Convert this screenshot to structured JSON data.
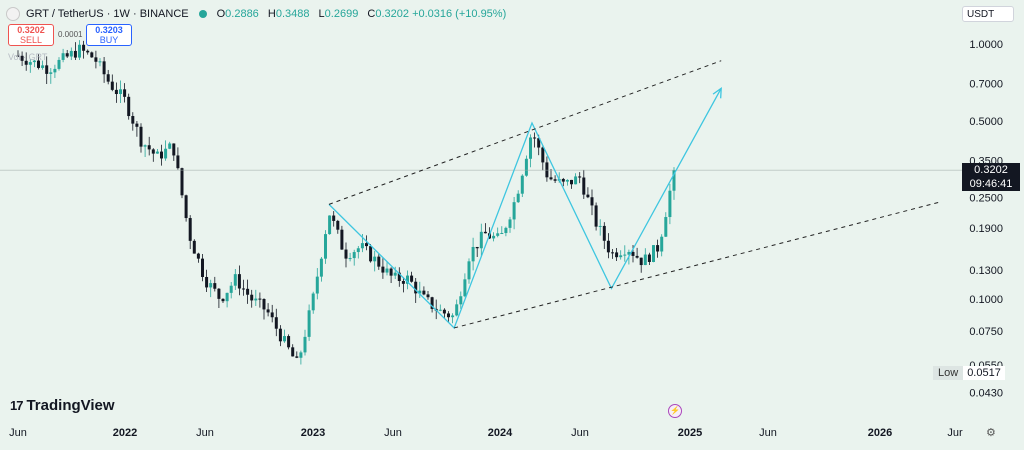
{
  "header": {
    "symbol": "GRT / TetherUS · 1W · BINANCE",
    "open_label": "O",
    "open": "0.2886",
    "high_label": "H",
    "high": "0.3488",
    "low_label": "L",
    "low": "0.2699",
    "close_label": "C",
    "close": "0.3202",
    "change": "+0.0316 (+10.95%)"
  },
  "trade": {
    "sell_price": "0.3202",
    "sell_label": "SELL",
    "buy_price": "0.3203",
    "buy_label": "BUY",
    "spread": "0.0001"
  },
  "volume_legend": "Vol · GRT",
  "currency_selector": "USDT",
  "low_marker": {
    "label": "Low",
    "value": "0.0517"
  },
  "last_price": {
    "price": "0.3202",
    "countdown": "09:46:41"
  },
  "brand": {
    "name": "TradingView",
    "mark": "17"
  },
  "colors": {
    "up": "#26a69a",
    "down": "#131722",
    "pattern": "#3ec6e0",
    "channel": "#222222",
    "background": "#eaf3ee"
  },
  "icons": {
    "event": "lightning-icon",
    "settings": "gear-icon"
  },
  "chart_data": {
    "type": "candlestick",
    "scale": "log",
    "y_ticks": [
      1.0,
      0.7,
      0.5,
      0.35,
      0.25,
      0.19,
      0.13,
      0.1,
      0.075,
      0.055,
      0.043
    ],
    "y_tick_labels": [
      "1.0000",
      "0.7000",
      "0.5000",
      "0.3500",
      "0.2500",
      "0.1900",
      "0.1300",
      "0.1000",
      "0.0750",
      "0.0550",
      "0.0430"
    ],
    "x_ticks": [
      {
        "label": "Jun",
        "date": "2021-06"
      },
      {
        "label": "2022",
        "date": "2022-01"
      },
      {
        "label": "Jun",
        "date": "2022-06"
      },
      {
        "label": "2023",
        "date": "2023-01"
      },
      {
        "label": "Jun",
        "date": "2023-06"
      },
      {
        "label": "2024",
        "date": "2024-01"
      },
      {
        "label": "Jun",
        "date": "2024-06"
      },
      {
        "label": "2025",
        "date": "2025-01"
      },
      {
        "label": "Jun",
        "date": "2025-06"
      },
      {
        "label": "2026",
        "date": "2026-01"
      },
      {
        "label": "Jur",
        "date": "2026-06"
      }
    ],
    "price_path": [
      [
        "2021-06",
        0.9
      ],
      [
        "2021-08",
        0.8
      ],
      [
        "2021-10",
        0.95
      ],
      [
        "2021-11",
        0.88
      ],
      [
        "2021-12",
        0.7
      ],
      [
        "2022-01",
        0.6
      ],
      [
        "2022-02",
        0.42
      ],
      [
        "2022-03",
        0.36
      ],
      [
        "2022-04",
        0.4
      ],
      [
        "2022-05",
        0.18
      ],
      [
        "2022-06",
        0.12
      ],
      [
        "2022-07",
        0.1
      ],
      [
        "2022-08",
        0.12
      ],
      [
        "2022-09",
        0.1
      ],
      [
        "2022-10",
        0.09
      ],
      [
        "2022-11",
        0.07
      ],
      [
        "2022-12",
        0.055
      ],
      [
        "2023-01",
        0.1
      ],
      [
        "2023-02",
        0.22
      ],
      [
        "2023-03",
        0.15
      ],
      [
        "2023-04",
        0.16
      ],
      [
        "2023-05",
        0.14
      ],
      [
        "2023-06",
        0.12
      ],
      [
        "2023-07",
        0.12
      ],
      [
        "2023-08",
        0.1
      ],
      [
        "2023-09",
        0.09
      ],
      [
        "2023-10",
        0.085
      ],
      [
        "2023-11",
        0.15
      ],
      [
        "2023-12",
        0.18
      ],
      [
        "2024-01",
        0.17
      ],
      [
        "2024-02",
        0.25
      ],
      [
        "2024-03",
        0.46
      ],
      [
        "2024-04",
        0.3
      ],
      [
        "2024-05",
        0.28
      ],
      [
        "2024-06",
        0.3
      ],
      [
        "2024-07",
        0.2
      ],
      [
        "2024-08",
        0.15
      ],
      [
        "2024-09",
        0.16
      ],
      [
        "2024-10",
        0.14
      ],
      [
        "2024-11",
        0.16
      ],
      [
        "2024-12",
        0.3202
      ]
    ],
    "drawings": {
      "zigzag": [
        [
          "2023-02",
          0.235
        ],
        [
          "2023-10",
          0.077
        ],
        [
          "2024-03",
          0.49
        ],
        [
          "2024-08",
          0.11
        ],
        [
          "2024-12",
          0.31
        ],
        [
          "2025-03",
          0.67
        ]
      ],
      "upper_channel": [
        [
          "2023-02",
          0.235
        ],
        [
          "2025-03",
          0.86
        ]
      ],
      "lower_channel": [
        [
          "2023-10",
          0.077
        ],
        [
          "2026-05",
          0.24
        ]
      ]
    }
  }
}
